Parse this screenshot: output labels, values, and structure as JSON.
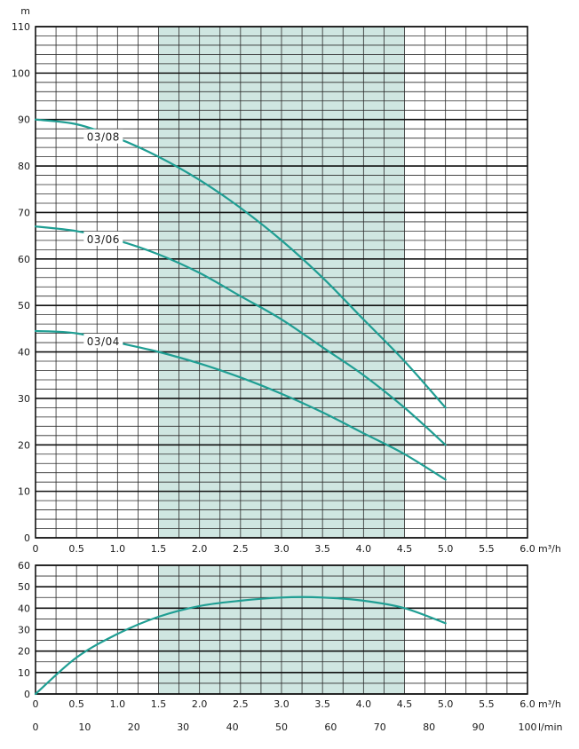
{
  "chart_data": [
    {
      "type": "line",
      "ylabel": "m",
      "xlabel": "m³/h",
      "xlim": [
        0,
        6
      ],
      "ylim": [
        0,
        110
      ],
      "xticks": [
        "0",
        "0.5",
        "1.0",
        "1.5",
        "2.0",
        "2.5",
        "3.0",
        "3.5",
        "4.0",
        "4.5",
        "5.0",
        "5.5",
        "6.0"
      ],
      "yticks": [
        "0",
        "10",
        "20",
        "30",
        "40",
        "50",
        "60",
        "70",
        "80",
        "90",
        "100",
        "110"
      ],
      "highlight_range": [
        1.5,
        4.5
      ],
      "grid": true,
      "series": [
        {
          "name": "03/08",
          "x": [
            0,
            0.5,
            1.0,
            1.5,
            2.0,
            2.5,
            3.0,
            3.5,
            4.0,
            4.5,
            5.0
          ],
          "y": [
            90,
            89,
            86,
            82,
            77,
            71,
            64,
            56,
            47,
            38,
            28
          ]
        },
        {
          "name": "03/06",
          "x": [
            0,
            0.5,
            1.0,
            1.5,
            2.0,
            2.5,
            3.0,
            3.5,
            4.0,
            4.5,
            5.0
          ],
          "y": [
            67,
            66,
            64,
            61,
            57,
            52,
            47,
            41,
            35,
            28,
            20
          ]
        },
        {
          "name": "03/04",
          "x": [
            0,
            0.5,
            1.0,
            1.5,
            2.0,
            2.5,
            3.0,
            3.5,
            4.0,
            4.5,
            5.0
          ],
          "y": [
            44.5,
            44,
            42,
            40,
            37.5,
            34.5,
            31,
            27,
            22.5,
            18,
            12.5
          ]
        }
      ]
    },
    {
      "type": "line",
      "xlabel": "m³/h",
      "xlim": [
        0,
        6
      ],
      "ylim": [
        0,
        60
      ],
      "xticks": [
        "0",
        "0.5",
        "1.0",
        "1.5",
        "2.0",
        "2.5",
        "3.0",
        "3.5",
        "4.0",
        "4.5",
        "5.0",
        "5.5",
        "6.0"
      ],
      "yticks": [
        "0",
        "10",
        "20",
        "30",
        "40",
        "50",
        "60"
      ],
      "secondary_xlabel": "l/min",
      "secondary_xticks": [
        "0",
        "10",
        "20",
        "30",
        "40",
        "50",
        "60",
        "70",
        "80",
        "90",
        "100"
      ],
      "highlight_range": [
        1.5,
        4.5
      ],
      "grid": true,
      "series": [
        {
          "x": [
            0,
            0.5,
            1.0,
            1.5,
            2.0,
            2.5,
            3.0,
            3.5,
            4.0,
            4.5,
            5.0
          ],
          "y": [
            0,
            17,
            28,
            36,
            41,
            43.5,
            45,
            45,
            43.5,
            40,
            33
          ]
        }
      ]
    }
  ],
  "colors": {
    "curve": "#1f9e93",
    "highlight": "#cfe6e1",
    "grid": "#2b2b2b"
  }
}
